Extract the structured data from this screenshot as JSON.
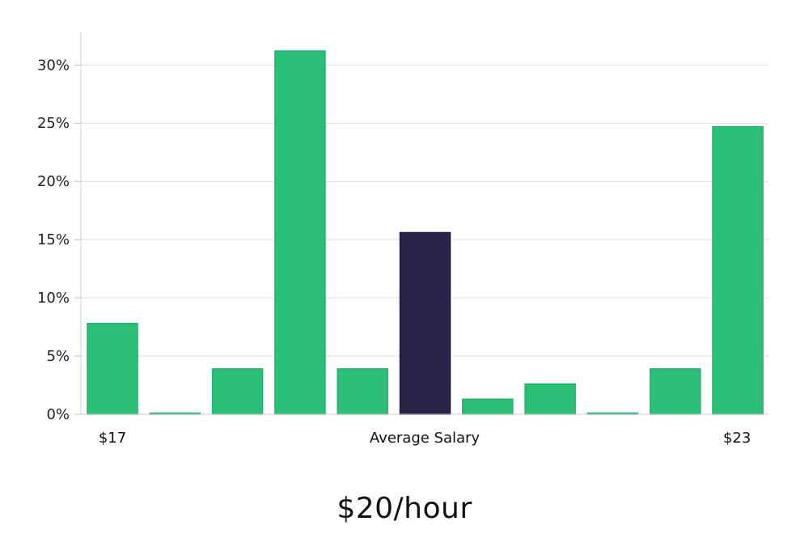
{
  "headline": "$20/hour",
  "colors": {
    "bar": "#2bbf78",
    "highlight": "#272447",
    "grid": "#dddddd",
    "axis": "#cfcfcf"
  },
  "chart_data": {
    "type": "bar",
    "categories": [
      "",
      "",
      "",
      "",
      "",
      "",
      "",
      "",
      "",
      "",
      ""
    ],
    "values": [
      7.8,
      0.1,
      3.9,
      31.2,
      3.9,
      15.6,
      1.3,
      2.6,
      0.1,
      3.9,
      24.7
    ],
    "highlight_index": 5,
    "ylim": [
      0,
      32.8
    ],
    "yticks": [
      0,
      5,
      10,
      15,
      20,
      25,
      30
    ],
    "ytick_labels": [
      "0%",
      "5%",
      "10%",
      "15%",
      "20%",
      "25%",
      "30%"
    ],
    "x_annotations": [
      "$17",
      "Average Salary",
      "$23"
    ],
    "grid": true
  }
}
